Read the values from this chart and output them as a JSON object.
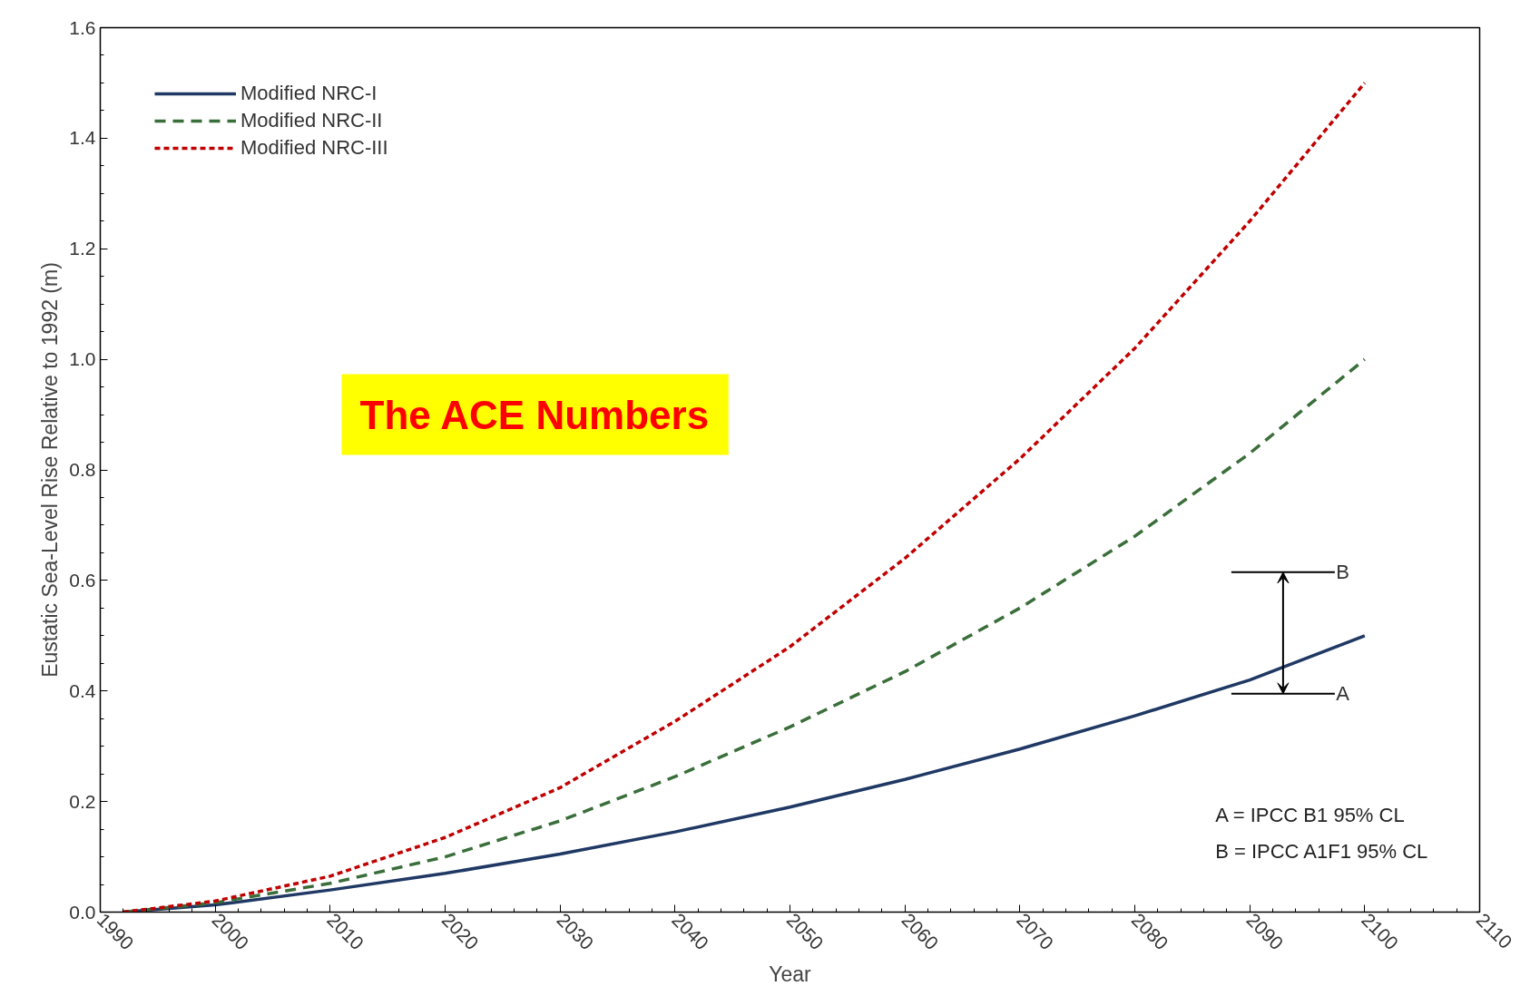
{
  "chart_data": {
    "type": "line",
    "xlabel": "Year",
    "ylabel": "Eustatic Sea-Level Rise Relative to 1992 (m)",
    "x": [
      1992,
      2000,
      2010,
      2020,
      2030,
      2040,
      2050,
      2060,
      2070,
      2080,
      2090,
      2100
    ],
    "series": [
      {
        "name": "Modified NRC-I",
        "color": "#1f3864",
        "line_style": "solid",
        "values": [
          0,
          0.013,
          0.04,
          0.07,
          0.105,
          0.145,
          0.19,
          0.24,
          0.295,
          0.355,
          0.42,
          0.5
        ]
      },
      {
        "name": "Modified NRC-II",
        "color": "#3a6e3a",
        "line_style": "dashed",
        "values": [
          0,
          0.017,
          0.052,
          0.1,
          0.165,
          0.245,
          0.335,
          0.435,
          0.55,
          0.68,
          0.83,
          1.0
        ]
      },
      {
        "name": "Modified NRC-III",
        "color": "#c00000",
        "line_style": "dotted",
        "values": [
          0,
          0.02,
          0.065,
          0.135,
          0.225,
          0.345,
          0.48,
          0.64,
          0.82,
          1.02,
          1.25,
          1.5
        ]
      }
    ],
    "xlim": [
      1990,
      2110
    ],
    "xticks": [
      1990,
      2000,
      2010,
      2020,
      2030,
      2040,
      2050,
      2060,
      2070,
      2080,
      2090,
      2100,
      2110
    ],
    "ylim": [
      0,
      1.6
    ],
    "yticks": [
      {
        "value": 0,
        "label": "0.0"
      },
      0.2,
      0.4,
      0.6,
      0.8,
      {
        "value": 1,
        "label": "1.0"
      },
      1.2,
      1.4,
      1.6
    ],
    "ref_lines": [
      {
        "axis": "y",
        "value": 0.395,
        "label": "A"
      },
      {
        "axis": "y",
        "value": 0.615,
        "label": "B"
      }
    ],
    "grid": false,
    "legend": "top left",
    "marker": "none",
    "annotations": [
      "A = IPCC B1 95% CL",
      "B = IPCC A1F1 95% CL",
      "The ACE Numbers"
    ]
  }
}
